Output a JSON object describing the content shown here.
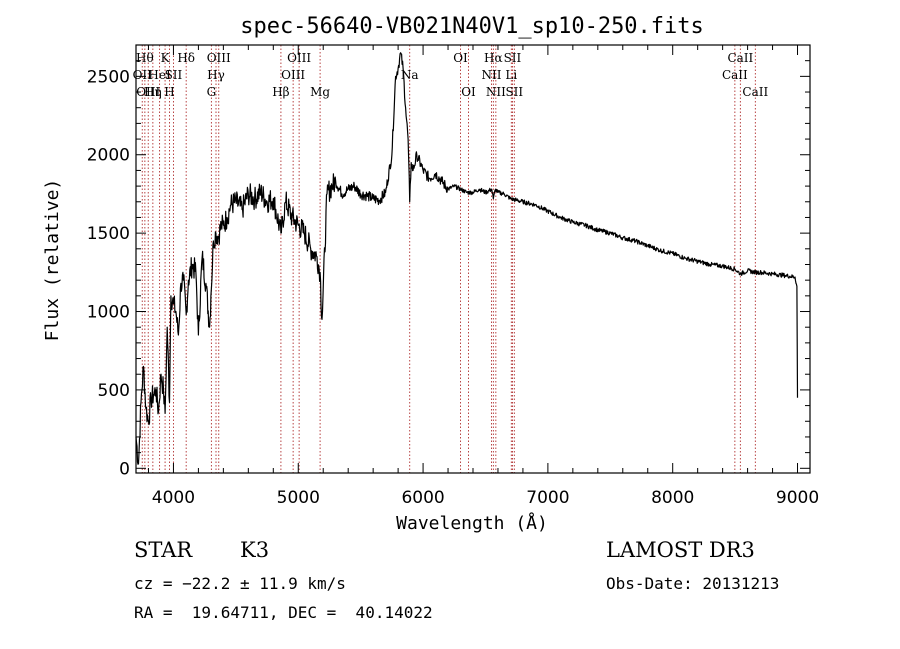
{
  "chart_data": {
    "type": "line",
    "title": "spec-56640-VB021N40V1_sp10-250.fits",
    "xlabel": "Wavelength (Å)",
    "ylabel": "Flux (relative)",
    "xlim": [
      3700,
      9100
    ],
    "ylim": [
      -30,
      2700
    ],
    "xticks": [
      4000,
      5000,
      6000,
      7000,
      8000,
      9000
    ],
    "yticks": [
      0,
      500,
      1000,
      1500,
      2000,
      2500
    ],
    "series": [
      {
        "name": "spectrum",
        "x": [
          3700,
          3720,
          3740,
          3760,
          3780,
          3800,
          3820,
          3840,
          3860,
          3880,
          3900,
          3920,
          3933,
          3950,
          3968,
          3980,
          4000,
          4020,
          4040,
          4060,
          4080,
          4102,
          4120,
          4150,
          4180,
          4200,
          4230,
          4260,
          4290,
          4300,
          4320,
          4340,
          4360,
          4383,
          4400,
          4430,
          4460,
          4500,
          4550,
          4600,
          4650,
          4700,
          4750,
          4800,
          4861,
          4900,
          4950,
          5000,
          5050,
          5100,
          5150,
          5175,
          5190,
          5230,
          5270,
          5300,
          5350,
          5400,
          5450,
          5500,
          5550,
          5600,
          5650,
          5700,
          5750,
          5780,
          5800,
          5820,
          5840,
          5860,
          5880,
          5893,
          5905,
          5920,
          5950,
          6000,
          6050,
          6100,
          6150,
          6200,
          6250,
          6300,
          6350,
          6400,
          6450,
          6500,
          6550,
          6563,
          6580,
          6600,
          6650,
          6700,
          6750,
          6800,
          6900,
          7000,
          7100,
          7200,
          7300,
          7400,
          7500,
          7600,
          7700,
          7800,
          7900,
          8000,
          8100,
          8200,
          8300,
          8400,
          8500,
          8542,
          8600,
          8662,
          8700,
          8800,
          8900,
          8980,
          8995,
          9000
        ],
        "values": [
          200,
          30,
          420,
          650,
          380,
          300,
          440,
          470,
          500,
          360,
          600,
          500,
          350,
          900,
          420,
          1100,
          1050,
          1000,
          850,
          1180,
          1200,
          980,
          1200,
          1300,
          1250,
          850,
          1350,
          1180,
          900,
          1100,
          1450,
          1500,
          1480,
          1550,
          1550,
          1600,
          1680,
          1700,
          1650,
          1750,
          1720,
          1760,
          1700,
          1720,
          1500,
          1700,
          1600,
          1550,
          1500,
          1400,
          1350,
          1250,
          950,
          1750,
          1800,
          1830,
          1750,
          1780,
          1800,
          1750,
          1740,
          1720,
          1710,
          1760,
          2000,
          2500,
          2550,
          2650,
          2550,
          2300,
          2100,
          1700,
          1950,
          1900,
          2000,
          1900,
          1850,
          1880,
          1830,
          1780,
          1800,
          1780,
          1760,
          1760,
          1780,
          1760,
          1780,
          1720,
          1780,
          1760,
          1750,
          1720,
          1710,
          1700,
          1680,
          1640,
          1600,
          1570,
          1550,
          1520,
          1500,
          1470,
          1450,
          1420,
          1390,
          1370,
          1340,
          1320,
          1300,
          1290,
          1270,
          1240,
          1260,
          1250,
          1250,
          1240,
          1230,
          1220,
          1160,
          450
        ]
      }
    ],
    "lines": [
      {
        "x": 3750,
        "label": "OII",
        "row": 1
      },
      {
        "x": 3771,
        "label": "Hθ",
        "row": 0
      },
      {
        "x": 3798,
        "label": "OIII",
        "row": 2
      },
      {
        "x": 3835,
        "label": "Hη",
        "row": 2
      },
      {
        "x": 3889,
        "label": "HeI",
        "row": 1
      },
      {
        "x": 3933,
        "label": "K",
        "row": 0
      },
      {
        "x": 3968,
        "label": "H",
        "row": 2
      },
      {
        "x": 4000,
        "label": "SII",
        "row": 1
      },
      {
        "x": 4102,
        "label": "Hδ",
        "row": 0
      },
      {
        "x": 4304,
        "label": "G",
        "row": 2
      },
      {
        "x": 4341,
        "label": "Hγ",
        "row": 1
      },
      {
        "x": 4363,
        "label": "OIII",
        "row": 0
      },
      {
        "x": 4861,
        "label": "Hβ",
        "row": 2
      },
      {
        "x": 4959,
        "label": "OIII",
        "row": 1
      },
      {
        "x": 5007,
        "label": "OIII",
        "row": 0
      },
      {
        "x": 5175,
        "label": "Mg",
        "row": 2
      },
      {
        "x": 5893,
        "label": "Na",
        "row": 1
      },
      {
        "x": 6300,
        "label": "OI",
        "row": 0
      },
      {
        "x": 6364,
        "label": "OI",
        "row": 2
      },
      {
        "x": 6548,
        "label": "NII",
        "row": 1
      },
      {
        "x": 6563,
        "label": "Hα",
        "row": 0
      },
      {
        "x": 6583,
        "label": "NII",
        "row": 2
      },
      {
        "x": 6707,
        "label": "Li",
        "row": 1
      },
      {
        "x": 6716,
        "label": "SII",
        "row": 0
      },
      {
        "x": 6731,
        "label": "SII",
        "row": 2
      },
      {
        "x": 8498,
        "label": "CaII",
        "row": 1
      },
      {
        "x": 8542,
        "label": "CaII",
        "row": 0
      },
      {
        "x": 8662,
        "label": "CaII",
        "row": 2
      }
    ]
  },
  "info": {
    "object_class": "STAR",
    "subclass": "K3",
    "survey": "LAMOST DR3",
    "velocity": "cz = −22.2 ± 11.9 km/s",
    "obs_date": "Obs-Date: 20131213",
    "coords": "RA =  19.64711, DEC =  40.14022"
  },
  "colors": {
    "spectrum": "#000000",
    "line_marker": "#b03030",
    "axes": "#000000"
  }
}
